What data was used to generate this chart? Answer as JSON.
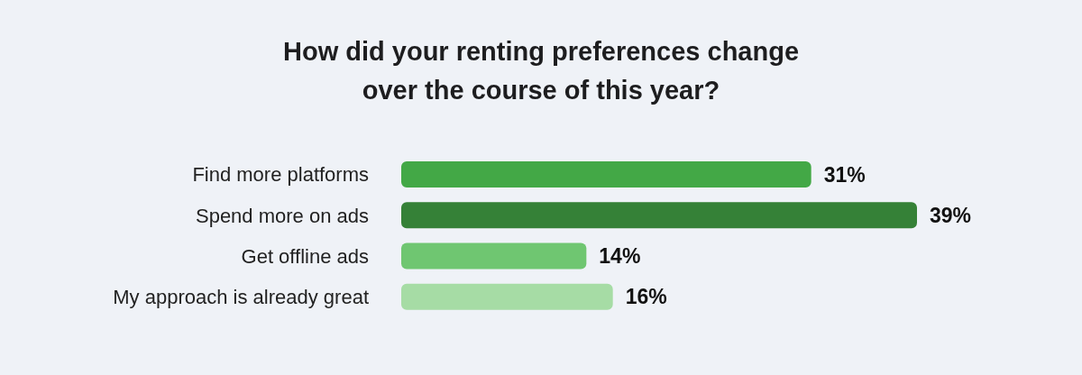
{
  "chart_data": {
    "type": "bar",
    "orientation": "horizontal",
    "title": "How did your renting preferences change\nover the course of this year?",
    "categories": [
      "Find more platforms",
      "Spend more on ads",
      "Get offline ads",
      "My approach is already great"
    ],
    "values": [
      31,
      39,
      14,
      16
    ],
    "colors": [
      "#43a846",
      "#358137",
      "#6fc671",
      "#a6dca5"
    ],
    "value_labels": [
      "31%",
      "39%",
      "14%",
      "16%"
    ],
    "grid": false,
    "legend": false
  }
}
